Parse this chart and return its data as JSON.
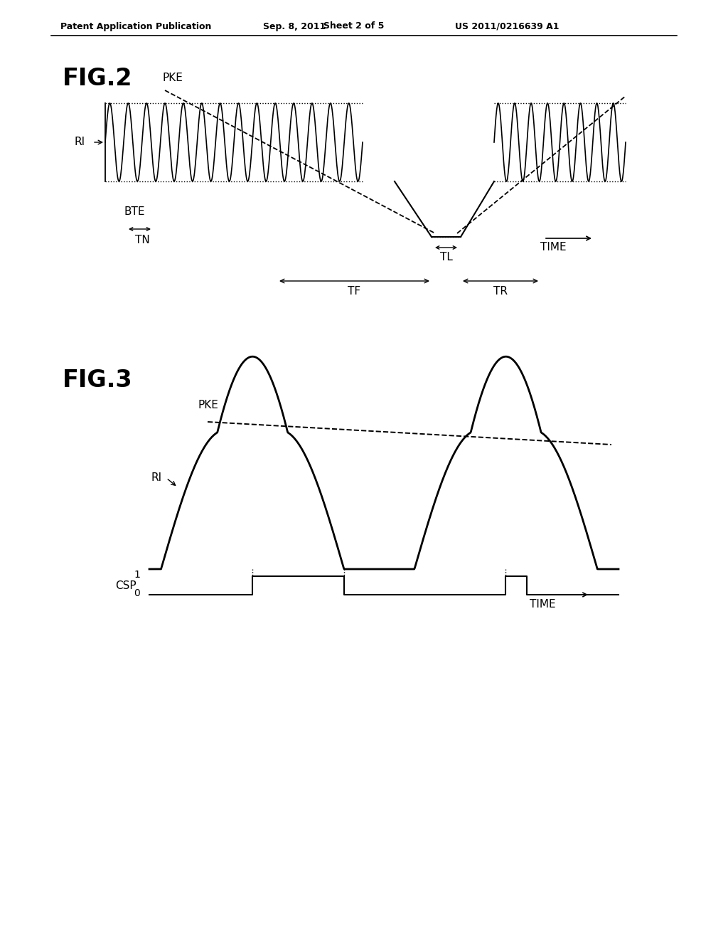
{
  "bg_color": "#ffffff",
  "fig_width": 10.24,
  "fig_height": 13.2,
  "header_text": "Patent Application Publication",
  "header_date": "Sep. 8, 2011",
  "header_sheet": "Sheet 2 of 5",
  "header_patent": "US 2011/0216639 A1",
  "fig2_title": "FIG.2",
  "fig3_title": "FIG.3"
}
